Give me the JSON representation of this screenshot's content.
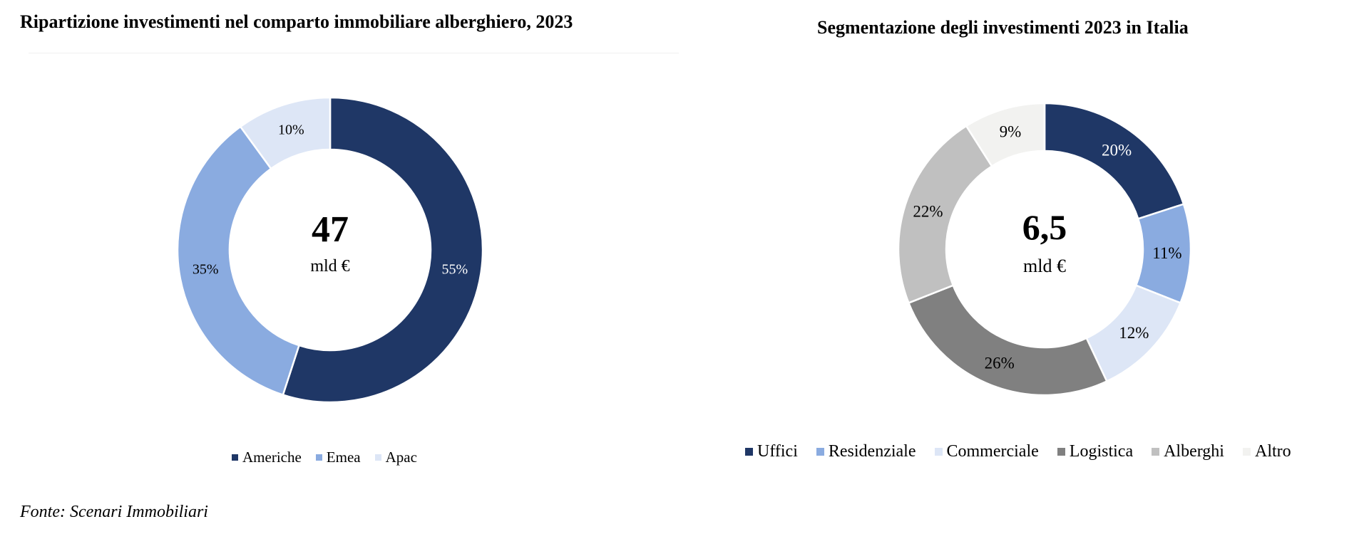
{
  "chart_data": [
    {
      "type": "pie",
      "donut": true,
      "title": "Ripartizione investimenti nel comparto immobiliare alberghiero, 2023",
      "center_value": "47",
      "center_unit": "mld €",
      "categories": [
        "Americhe",
        "Emea",
        "Apac"
      ],
      "values": [
        55,
        35,
        10
      ],
      "labels": [
        "55%",
        "35%",
        "10%"
      ],
      "colors": [
        "#1f3766",
        "#8aabe0",
        "#dde6f6"
      ],
      "label_colors": [
        "#ffffff",
        "#000000",
        "#000000"
      ],
      "legend_position": "bottom"
    },
    {
      "type": "pie",
      "donut": true,
      "title": "Segmentazione degli investimenti 2023 in Italia",
      "center_value": "6,5",
      "center_unit": "mld €",
      "categories": [
        "Uffici",
        "Residenziale",
        "Commerciale",
        "Logistica",
        "Alberghi",
        "Altro"
      ],
      "values": [
        20,
        11,
        12,
        26,
        22,
        9
      ],
      "labels": [
        "20%",
        "11%",
        "12%",
        "26%",
        "22%",
        "9%"
      ],
      "colors": [
        "#1f3766",
        "#8aabe0",
        "#dde6f6",
        "#808080",
        "#c0c0c0",
        "#f2f2f0"
      ],
      "label_colors": [
        "#ffffff",
        "#000000",
        "#000000",
        "#000000",
        "#000000",
        "#000000"
      ],
      "legend_position": "bottom"
    }
  ],
  "footer": {
    "source": "Fonte: Scenari Immobiliari"
  }
}
